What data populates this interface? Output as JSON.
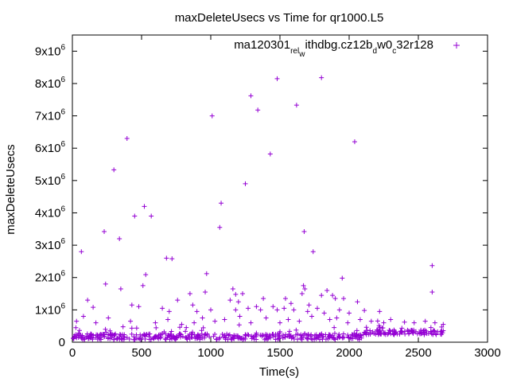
{
  "chart_data": {
    "type": "scatter",
    "title": "maxDeleteUsecs vs Time for qr1000.L5",
    "xlabel": "Time(s)",
    "ylabel": "maxDeleteUsecs",
    "xlim": [
      0,
      3000
    ],
    "ylim": [
      0,
      9500000
    ],
    "x_ticks": [
      0,
      500,
      1000,
      1500,
      2000,
      2500,
      3000
    ],
    "x_tick_labels": [
      "0",
      "500",
      "1000",
      "1500",
      "2000",
      "2500",
      "3000"
    ],
    "y_ticks": [
      0,
      1000000,
      2000000,
      3000000,
      4000000,
      5000000,
      6000000,
      7000000,
      8000000,
      9000000
    ],
    "y_tick_labels": [
      {
        "mant": "0",
        "exp": ""
      },
      {
        "mant": "1x10",
        "exp": "6"
      },
      {
        "mant": "2x10",
        "exp": "6"
      },
      {
        "mant": "3x10",
        "exp": "6"
      },
      {
        "mant": "4x10",
        "exp": "6"
      },
      {
        "mant": "5x10",
        "exp": "6"
      },
      {
        "mant": "6x10",
        "exp": "6"
      },
      {
        "mant": "7x10",
        "exp": "6"
      },
      {
        "mant": "8x10",
        "exp": "6"
      },
      {
        "mant": "9x10",
        "exp": "6"
      }
    ],
    "grid": false,
    "legend_position": "top-right",
    "marker": "plus",
    "series": [
      {
        "name_parts": [
          {
            "t": "ma120301",
            "s": ""
          },
          {
            "t": "rel",
            "s": "sub"
          },
          {
            "t": "w",
            "s": "sub2"
          },
          {
            "t": "ithdbg.cz12b",
            "s": ""
          },
          {
            "t": "d",
            "s": "sub"
          },
          {
            "t": "w0",
            "s": ""
          },
          {
            "t": "c",
            "s": "sub"
          },
          {
            "t": "32r128",
            "s": ""
          }
        ],
        "color": "#9400d3",
        "points": [
          [
            65,
            2800000
          ],
          [
            230,
            3420000
          ],
          [
            300,
            5330000
          ],
          [
            340,
            3200000
          ],
          [
            395,
            6300000
          ],
          [
            450,
            3900000
          ],
          [
            520,
            4200000
          ],
          [
            570,
            3900000
          ],
          [
            680,
            2600000
          ],
          [
            720,
            2580000
          ],
          [
            970,
            2120000
          ],
          [
            1010,
            7000000
          ],
          [
            1075,
            4300000
          ],
          [
            1065,
            3550000
          ],
          [
            1290,
            7620000
          ],
          [
            1340,
            7180000
          ],
          [
            1250,
            4900000
          ],
          [
            1430,
            5820000
          ],
          [
            1480,
            8150000
          ],
          [
            1620,
            7330000
          ],
          [
            1675,
            3420000
          ],
          [
            1740,
            2800000
          ],
          [
            1800,
            8180000
          ],
          [
            2040,
            6200000
          ],
          [
            1950,
            1980000
          ],
          [
            2600,
            2370000
          ],
          [
            2600,
            1550000
          ],
          [
            240,
            1800000
          ],
          [
            350,
            1650000
          ],
          [
            510,
            1750000
          ],
          [
            430,
            1150000
          ],
          [
            480,
            1100000
          ],
          [
            150,
            1080000
          ],
          [
            110,
            1300000
          ],
          [
            530,
            2090000
          ],
          [
            760,
            1300000
          ],
          [
            850,
            1500000
          ],
          [
            870,
            1150000
          ],
          [
            960,
            1550000
          ],
          [
            1160,
            1650000
          ],
          [
            1180,
            1480000
          ],
          [
            1230,
            1500000
          ],
          [
            1140,
            1300000
          ],
          [
            1200,
            1250000
          ],
          [
            1380,
            1350000
          ],
          [
            1540,
            1350000
          ],
          [
            1670,
            1750000
          ],
          [
            1680,
            1650000
          ],
          [
            1660,
            1500000
          ],
          [
            1800,
            1450000
          ],
          [
            1710,
            1150000
          ],
          [
            1840,
            1600000
          ],
          [
            1880,
            1450000
          ],
          [
            1900,
            1350000
          ],
          [
            1960,
            1350000
          ],
          [
            2060,
            1250000
          ],
          [
            1580,
            1200000
          ],
          [
            1450,
            1100000
          ],
          [
            1180,
            1000000
          ],
          [
            1270,
            1050000
          ],
          [
            1530,
            1050000
          ],
          [
            1330,
            1100000
          ],
          [
            650,
            1050000
          ],
          [
            700,
            950000
          ],
          [
            900,
            950000
          ],
          [
            1360,
            1000000
          ],
          [
            1480,
            1000000
          ],
          [
            1700,
            950000
          ],
          [
            1820,
            900000
          ],
          [
            1930,
            1000000
          ],
          [
            2000,
            900000
          ],
          [
            2110,
            980000
          ],
          [
            2220,
            950000
          ],
          [
            1000,
            1000000
          ],
          [
            1600,
            1000000
          ],
          [
            1770,
            1050000
          ],
          [
            30,
            650000
          ],
          [
            80,
            800000
          ],
          [
            170,
            600000
          ],
          [
            260,
            750000
          ],
          [
            420,
            650000
          ],
          [
            600,
            600000
          ],
          [
            690,
            700000
          ],
          [
            790,
            550000
          ],
          [
            880,
            600000
          ],
          [
            940,
            750000
          ],
          [
            1030,
            650000
          ],
          [
            1100,
            700000
          ],
          [
            1210,
            800000
          ],
          [
            1290,
            600000
          ],
          [
            1400,
            750000
          ],
          [
            1500,
            600000
          ],
          [
            1560,
            700000
          ],
          [
            1640,
            650000
          ],
          [
            1730,
            800000
          ],
          [
            1860,
            700000
          ],
          [
            1910,
            750000
          ],
          [
            1990,
            600000
          ],
          [
            2080,
            700000
          ],
          [
            2160,
            650000
          ],
          [
            2250,
            600000
          ],
          [
            2300,
            700000
          ],
          [
            2400,
            620000
          ],
          [
            2470,
            600000
          ],
          [
            2550,
            650000
          ],
          [
            2620,
            600000
          ],
          [
            2680,
            550000
          ]
        ]
      }
    ]
  }
}
